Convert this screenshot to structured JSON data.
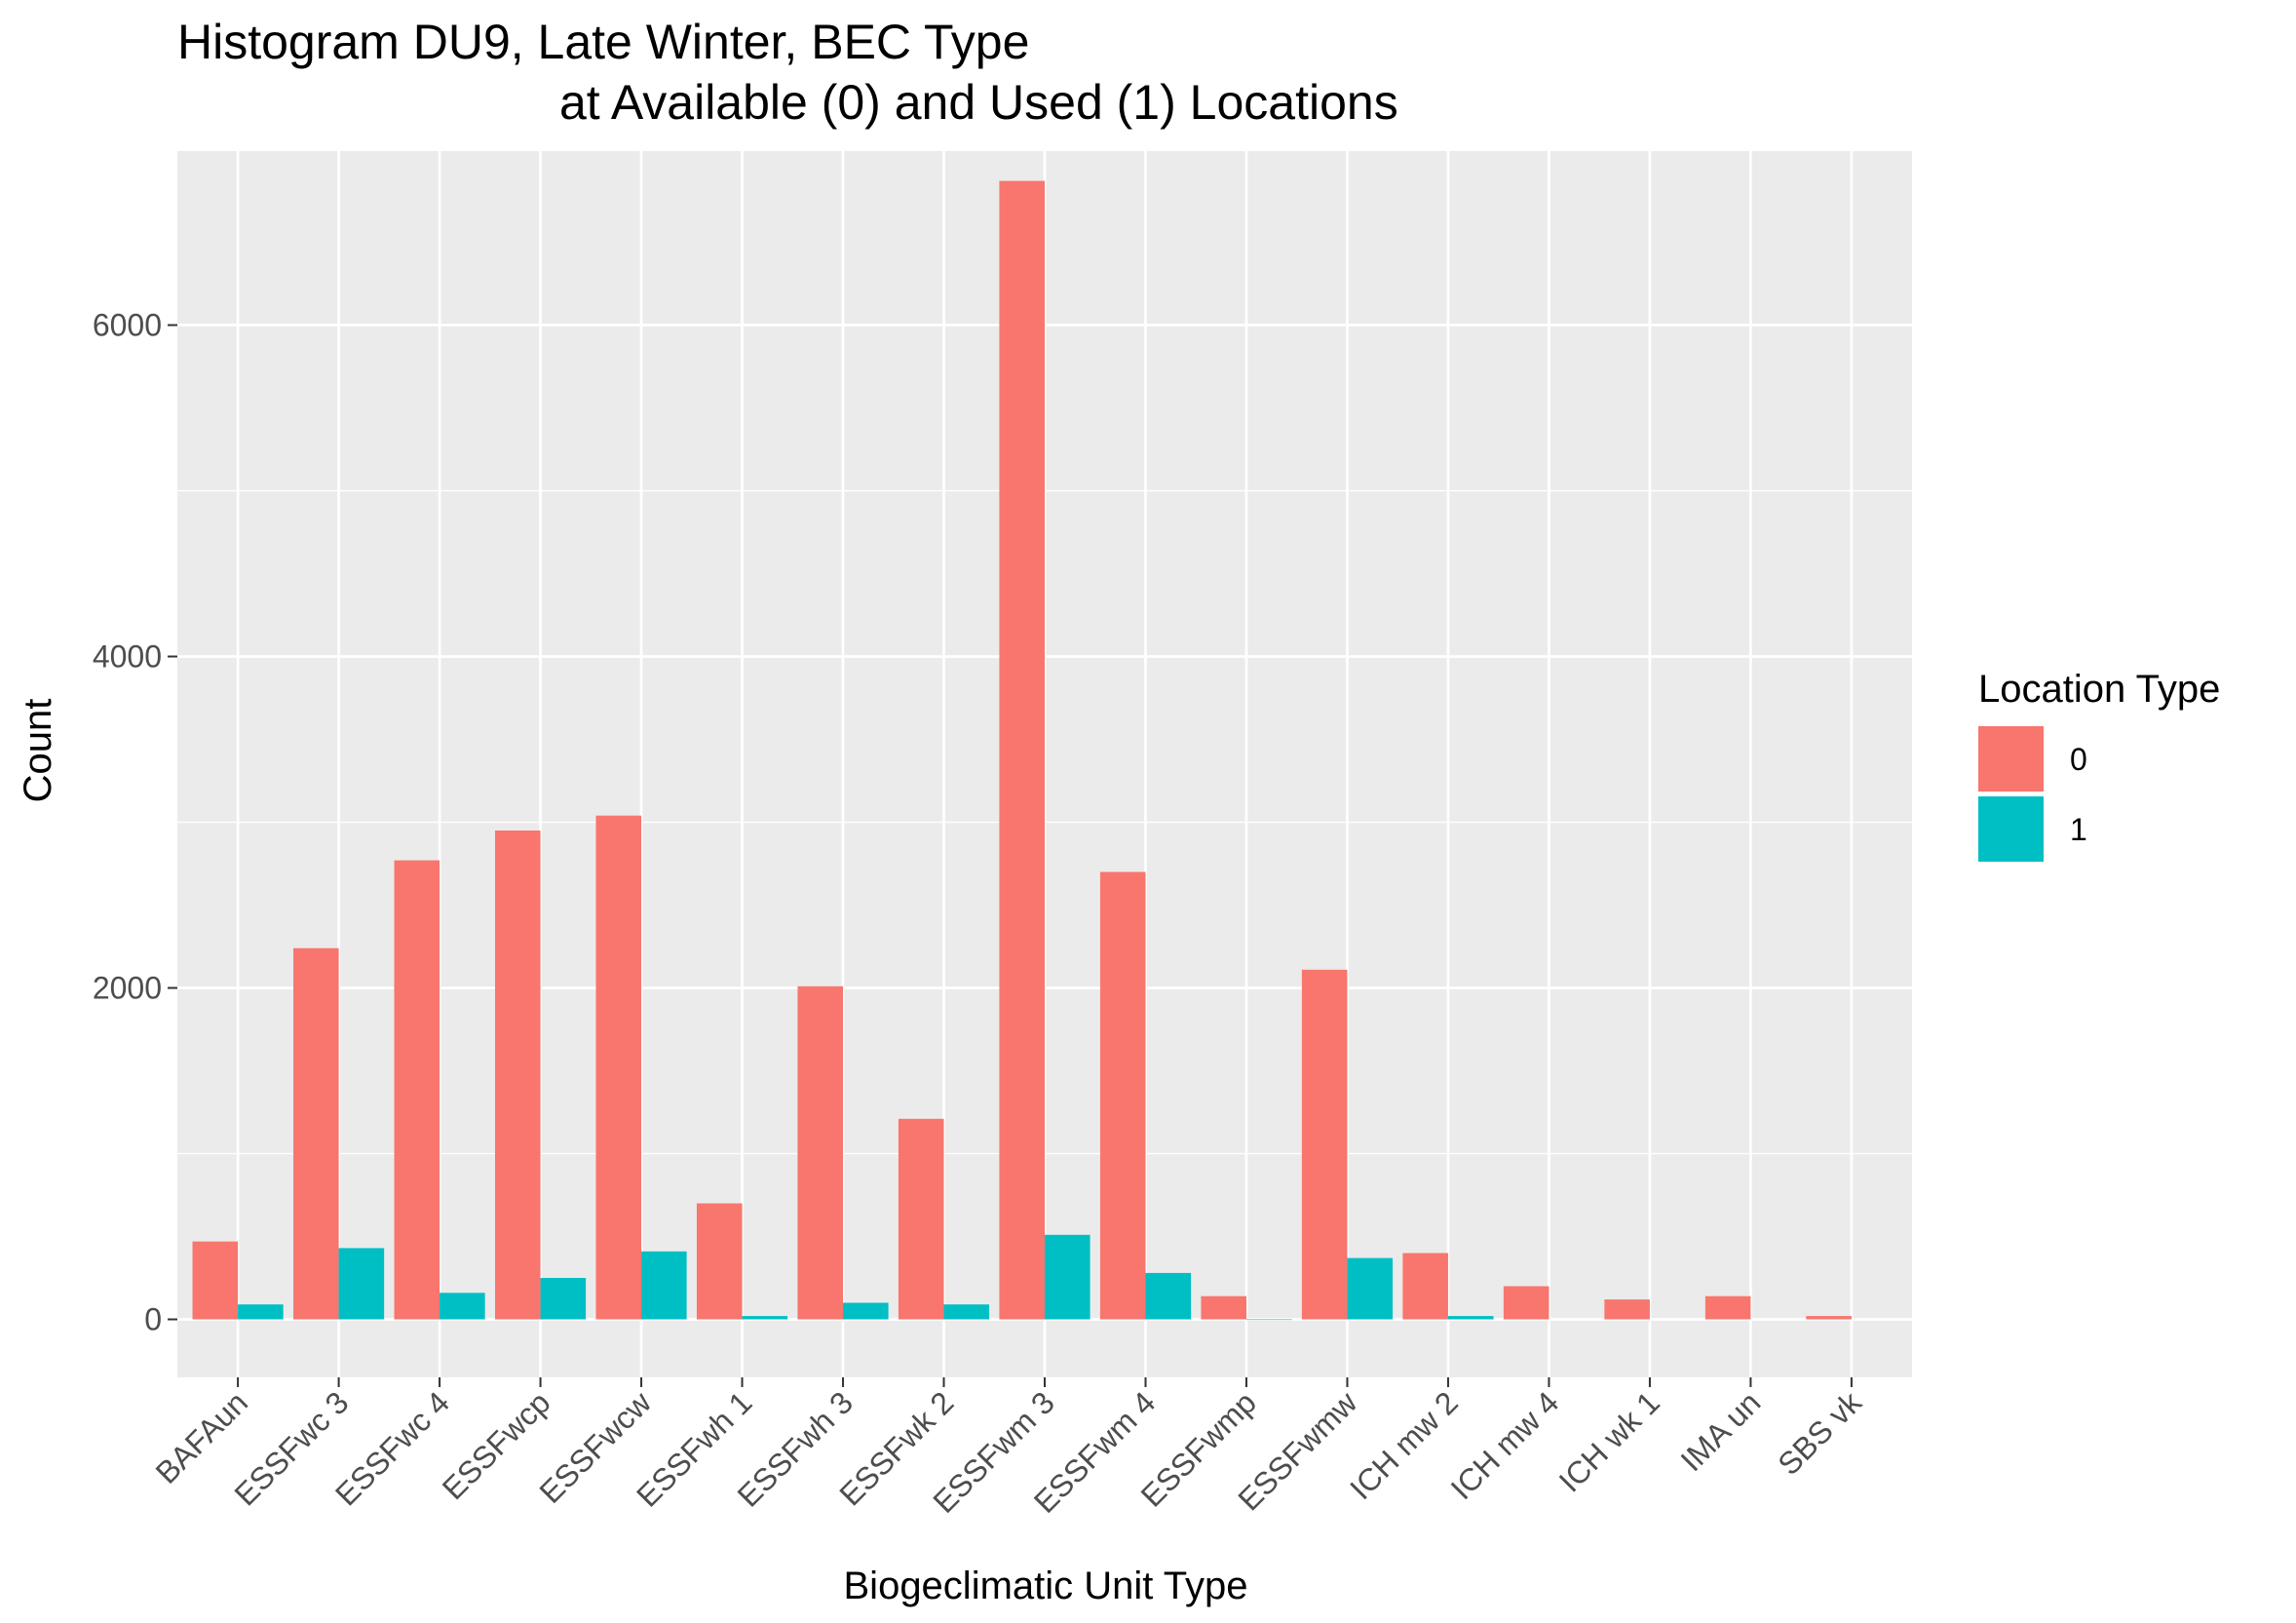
{
  "chart_data": {
    "type": "bar",
    "title_line1": "Histogram DU9, Late Winter, BEC Type",
    "title_line2": "at Available (0) and Used (1) Locations",
    "xlabel": "Biogeclimatic Unit Type",
    "ylabel": "Count",
    "ylim": [
      -350,
      7050
    ],
    "yticks": [
      0,
      2000,
      4000,
      6000
    ],
    "grid": true,
    "legend_title": "Location Type",
    "legend_position": "right",
    "categories": [
      "BAFAun",
      "ESSFwc 3",
      "ESSFwc 4",
      "ESSFwcp",
      "ESSFwcw",
      "ESSFwh 1",
      "ESSFwh 3",
      "ESSFwk 2",
      "ESSFwm 3",
      "ESSFwm 4",
      "ESSFwmp",
      "ESSFwmw",
      "ICH mw 2",
      "ICH mw 4",
      "ICH wk 1",
      "IMA un",
      "SBS vk"
    ],
    "series": [
      {
        "name": "0",
        "color": "#F8766D",
        "values": [
          470,
          2240,
          2770,
          2950,
          3040,
          700,
          2010,
          1210,
          6870,
          2700,
          140,
          2110,
          400,
          200,
          120,
          140,
          20
        ]
      },
      {
        "name": "1",
        "color": "#00BFC4",
        "values": [
          90,
          430,
          160,
          250,
          410,
          20,
          100,
          90,
          510,
          280,
          0,
          370,
          20,
          null,
          null,
          null,
          null
        ]
      }
    ]
  }
}
